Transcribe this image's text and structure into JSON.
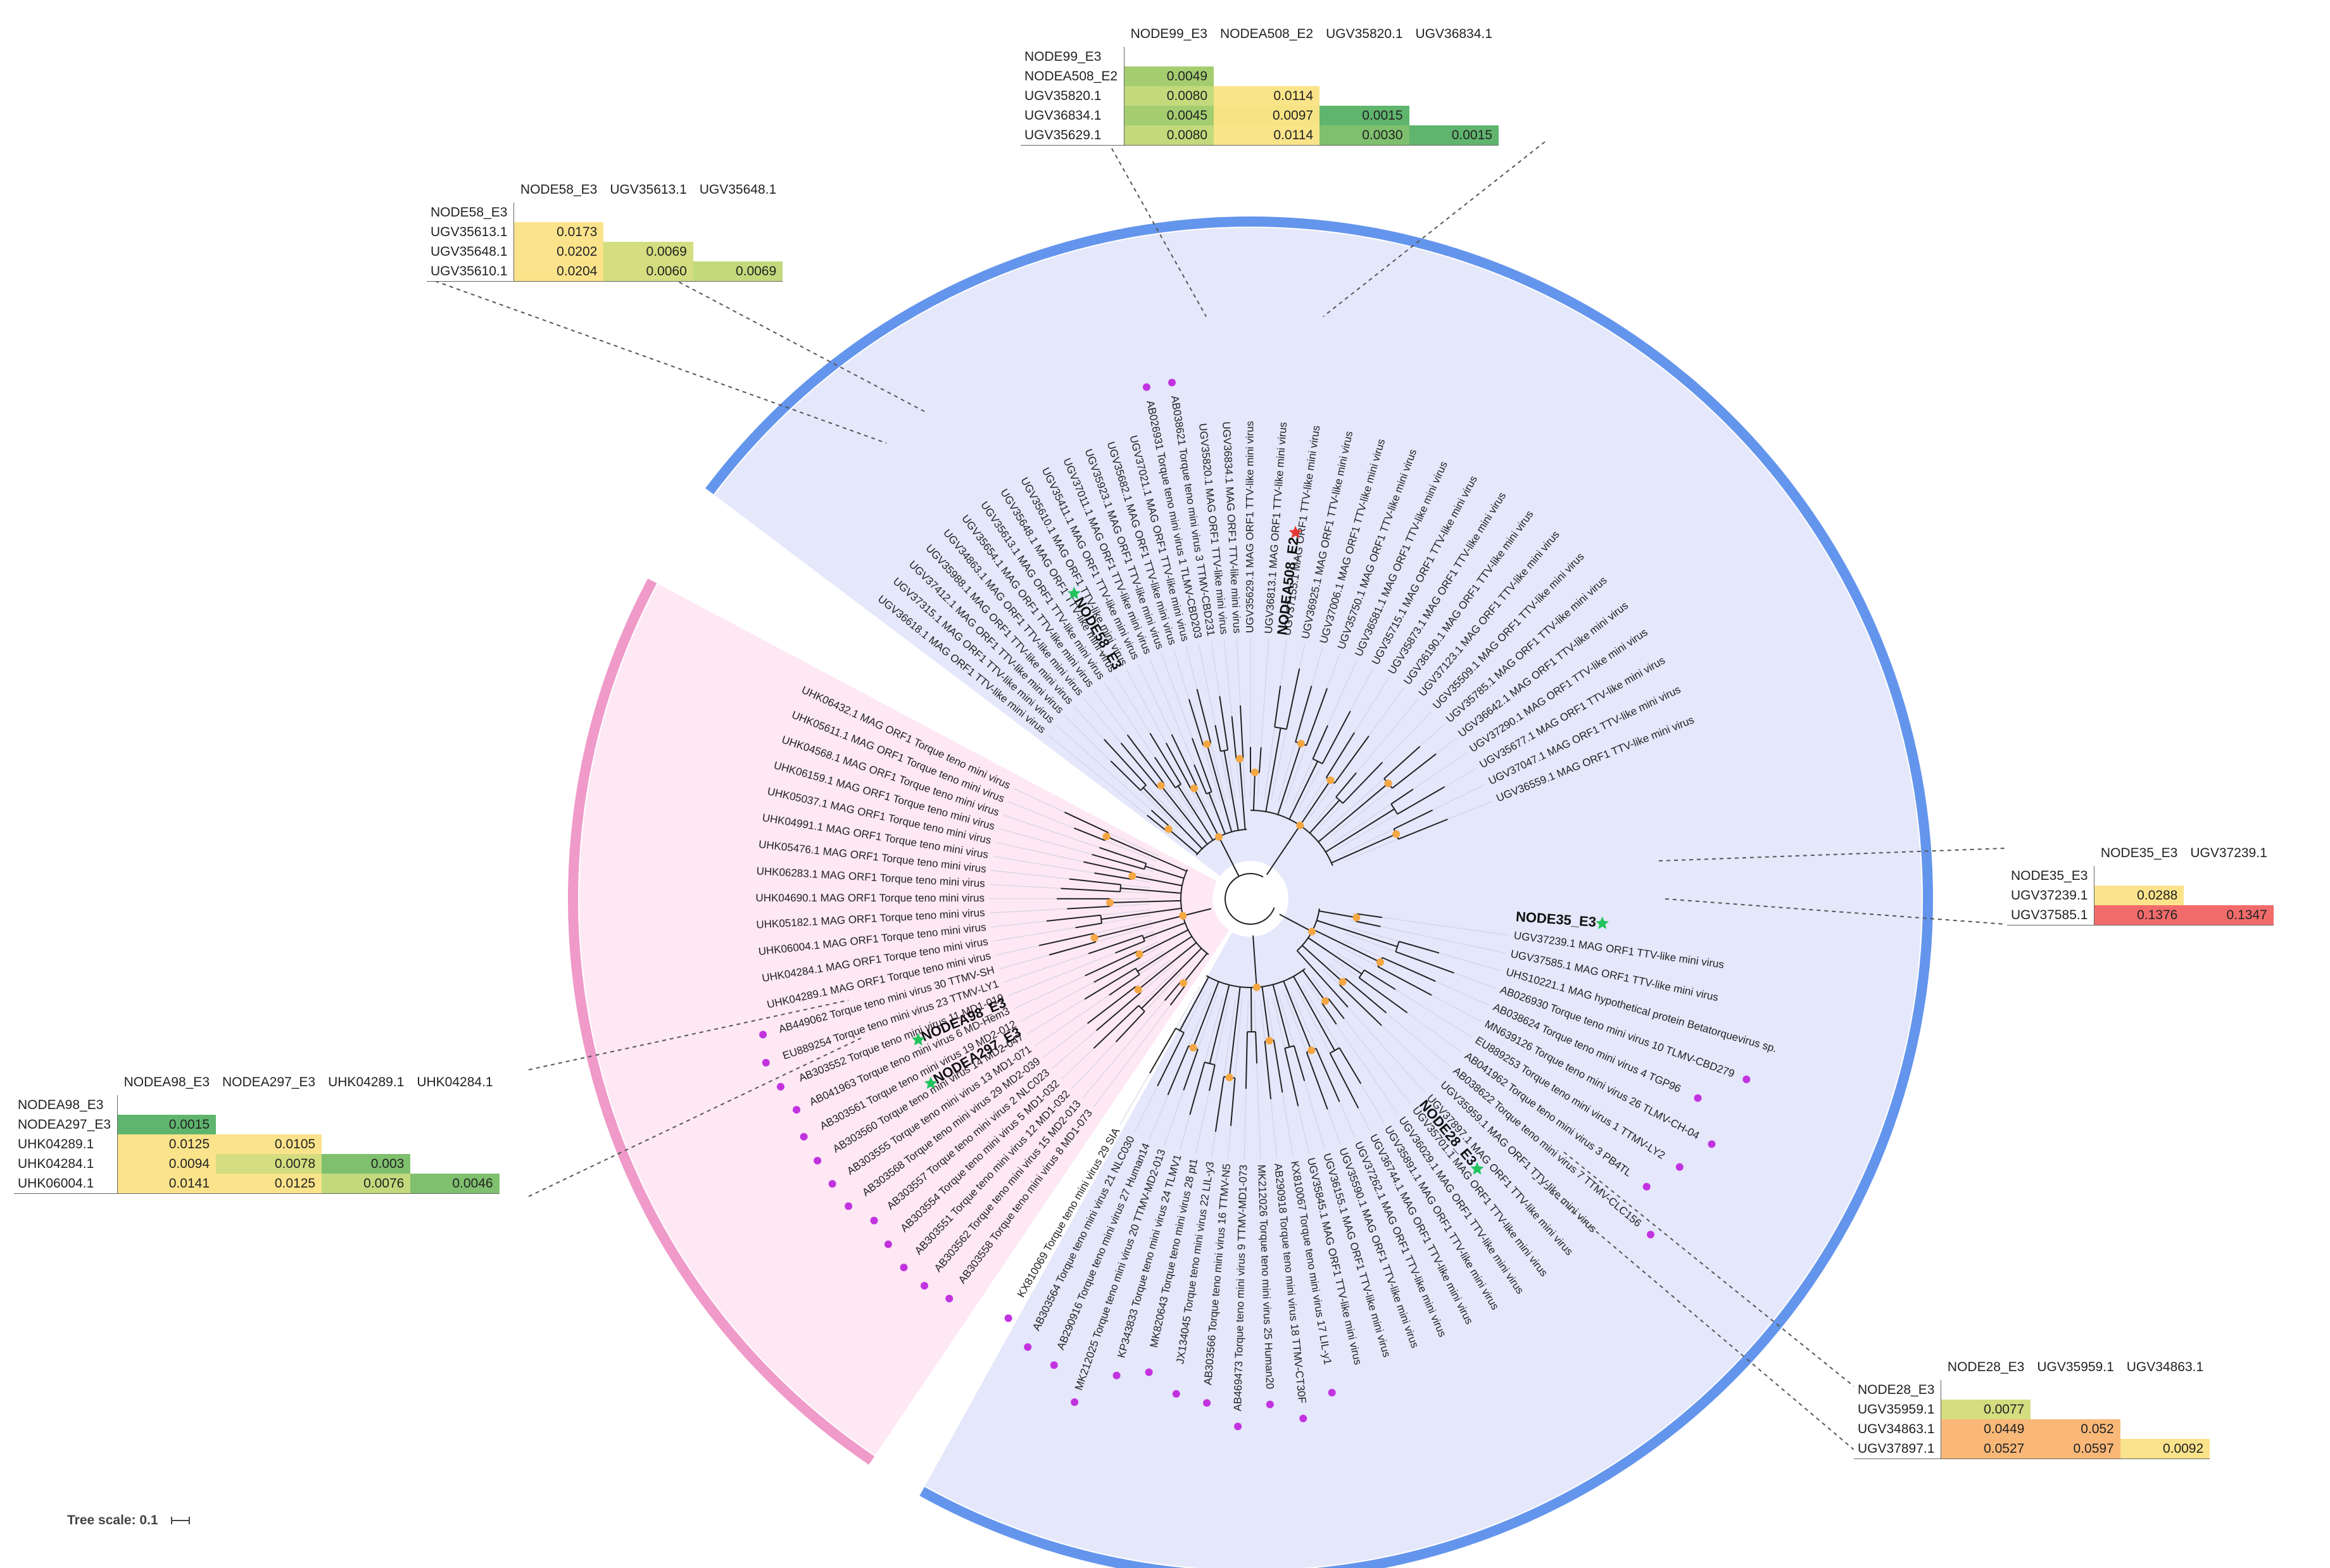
{
  "tree_scale": {
    "label": "Tree scale: 0.1"
  },
  "matrices": [
    {
      "id": "node99",
      "cols": [
        "NODE99_E3",
        "NODEA508_E2",
        "UGV35820.1",
        "UGV36834.1"
      ],
      "rows": [
        {
          "label": "NODE99_E3",
          "values": []
        },
        {
          "label": "NODEA508_E2",
          "values": [
            "0.0049"
          ]
        },
        {
          "label": "UGV35820.1",
          "values": [
            "0.0080",
            "0.0114"
          ]
        },
        {
          "label": "UGV36834.1",
          "values": [
            "0.0045",
            "0.0097",
            "0.0015"
          ]
        },
        {
          "label": "UGV35629.1",
          "values": [
            "0.0080",
            "0.0114",
            "0.0030",
            "0.0015"
          ]
        }
      ],
      "colors": [
        [],
        [
          "#a4cd70"
        ],
        [
          "#c2da7c",
          "#fae489"
        ],
        [
          "#a4cd70",
          "#f6e384",
          "#60b56e"
        ],
        [
          "#c2da7c",
          "#fae489",
          "#7fc06e",
          "#60b56e"
        ]
      ]
    },
    {
      "id": "node58",
      "cols": [
        "NODE58_E3",
        "UGV35613.1",
        "UGV35648.1"
      ],
      "rows": [
        {
          "label": "NODE58_E3",
          "values": []
        },
        {
          "label": "UGV35613.1",
          "values": [
            "0.0173"
          ]
        },
        {
          "label": "UGV35648.1",
          "values": [
            "0.0202",
            "0.0069"
          ]
        },
        {
          "label": "UGV35610.1",
          "values": [
            "0.0204",
            "0.0060",
            "0.0069"
          ]
        }
      ],
      "colors": [
        [],
        [
          "#fbe38b"
        ],
        [
          "#fbe38b",
          "#d4dd7f"
        ],
        [
          "#fbe38b",
          "#d4dd7f",
          "#c2da7c"
        ]
      ]
    },
    {
      "id": "node35",
      "cols": [
        "NODE35_E3",
        "UGV37239.1"
      ],
      "rows": [
        {
          "label": "NODE35_E3",
          "values": []
        },
        {
          "label": "UGV37239.1",
          "values": [
            "0.0288"
          ]
        },
        {
          "label": "UGV37585.1",
          "values": [
            "0.1376",
            "0.1347"
          ]
        }
      ],
      "colors": [
        [],
        [
          "#fbe38b"
        ],
        [
          "#f26b6b",
          "#f26b6b"
        ]
      ]
    },
    {
      "id": "nodea98",
      "cols": [
        "NODEA98_E3",
        "NODEA297_E3",
        "UHK04289.1",
        "UHK04284.1"
      ],
      "rows": [
        {
          "label": "NODEA98_E3",
          "values": []
        },
        {
          "label": "NODEA297_E3",
          "values": [
            "0.0015"
          ]
        },
        {
          "label": "UHK04289.1",
          "values": [
            "0.0125",
            "0.0105"
          ]
        },
        {
          "label": "UHK04284.1",
          "values": [
            "0.0094",
            "0.0078",
            "0.003"
          ]
        },
        {
          "label": "UHK06004.1",
          "values": [
            "0.0141",
            "0.0125",
            "0.0076",
            "0.0046"
          ]
        }
      ],
      "colors": [
        [],
        [
          "#60b56e"
        ],
        [
          "#fbe38b",
          "#fbe38b"
        ],
        [
          "#fbe38b",
          "#d4dd7f",
          "#7fc06e"
        ],
        [
          "#fbe38b",
          "#fbe38b",
          "#c2da7c",
          "#7fc06e"
        ]
      ]
    },
    {
      "id": "node28",
      "cols": [
        "NODE28_E3",
        "UGV35959.1",
        "UGV34863.1"
      ],
      "rows": [
        {
          "label": "NODE28_E3",
          "values": []
        },
        {
          "label": "UGV35959.1",
          "values": [
            "0.0077"
          ]
        },
        {
          "label": "UGV34863.1",
          "values": [
            "0.0449",
            "0.052"
          ]
        },
        {
          "label": "UGV37897.1",
          "values": [
            "0.0527",
            "0.0597",
            "0.0092"
          ]
        }
      ],
      "colors": [
        [],
        [
          "#d4dd7f"
        ],
        [
          "#f9b878",
          "#f9b878"
        ],
        [
          "#f9b878",
          "#f9b878",
          "#fbe38b"
        ]
      ]
    }
  ],
  "node_labels": {
    "node58": "NODE58_E3",
    "nodea508": "NODEA508_E2",
    "node35": "NODE35_E3",
    "nodea98": "NODEA98_E3",
    "nodea297": "NODEA297_E3",
    "node28": "NODE28_E3"
  },
  "leaf_labels": {
    "blue_top_left": [
      "UGV36618.1 MAG ORF1 TTV-like mini virus",
      "UGV37315.1 MAG ORF1 TTV-like mini virus",
      "UGV37412.1 MAG ORF1 TTV-like mini virus",
      "UGV35988.1 MAG ORF1 TTV-like mini virus",
      "UGV34863.1 MAG ORF1 TTV-like mini virus",
      "UGV35654.1 MAG ORF1 TTV-like mini virus",
      "UGV35613.1 MAG ORF1 TTV-like mini virus",
      "UGV35648.1 MAG ORF1 TTV-like mini virus",
      "UGV35610.1 MAG ORF1 TTV-like mini virus",
      "UGV35411.1 MAG ORF1 TTV-like mini virus",
      "UGV37011.1 MAG ORF1 TTV-like mini virus",
      "UGV35923.1 MAG ORF1 TTV-like mini virus",
      "UGV35682.1 MAG ORF1 TTV-like mini virus",
      "UGV37021.1 MAG ORF1 TTV-like mini virus",
      "AB026931 Torque teno mini virus 1 TLMV-CBD203",
      "AB038621 Torque teno mini virus 3 TTMV-CBD231",
      "UGV35820.1 MAG ORF1 TTV-like mini virus",
      "UGV36834.1 MAG ORF1 TTV-like mini virus"
    ],
    "blue_top_right": [
      "UGV35629.1 MAG ORF1 TTV-like mini virus",
      "UGV36813.1 MAG ORF1 TTV-like mini virus",
      "UGV37155.1 MAG ORF1 TTV-like mini virus",
      "UGV36925.1 MAG ORF1 TTV-like mini virus",
      "UGV37006.1 MAG ORF1 TTV-like mini virus",
      "UGV35750.1 MAG ORF1 TTV-like mini virus",
      "UGV36581.1 MAG ORF1 TTV-like mini virus",
      "UGV35715.1 MAG ORF1 TTV-like mini virus",
      "UGV35873.1 MAG ORF1 TTV-like mini virus",
      "UGV36190.1 MAG ORF1 TTV-like mini virus",
      "UGV37123.1 MAG ORF1 TTV-like mini virus",
      "UGV35509.1 MAG ORF1 TTV-like mini virus",
      "UGV35785.1 MAG ORF1 TTV-like mini virus",
      "UGV36642.1 MAG ORF1 TTV-like mini virus",
      "UGV37290.1 MAG ORF1 TTV-like mini virus",
      "UGV35677.1 MAG ORF1 TTV-like mini virus",
      "UGV37047.1 MAG ORF1 TTV-like mini virus",
      "UGV36559.1 MAG ORF1 TTV-like mini virus"
    ],
    "blue_right": [
      "UGV37239.1 MAG ORF1 TTV-like mini virus",
      "UGV37585.1 MAG ORF1 TTV-like mini virus",
      "UHS10221.1 MAG hypothetical protein Betatorquevirus sp.",
      "AB026930 Torque teno mini virus 10 TLMV-CBD279",
      "AB038624 Torque teno mini virus 4 TGP96",
      "MN639126 Torque teno mini virus 26 TLMV-CH-04",
      "EU889253 Torque teno mini virus 1 TTMV-LY2",
      "AB041962 Torque teno mini virus 3 PB4TL",
      "AB038622 Torque teno mini virus 7 TTMV-CLC156",
      "UGV35959.1 MAG ORF1 TTV-like mini virus",
      "UGV37897.1 MAG ORF1 TTV-like mini virus"
    ],
    "blue_bottom": [
      "UGV35701.1 MAG ORF1 TTV-like mini virus",
      "UGV36029.1 MAG ORF1 TTV-like mini virus",
      "UGV35891.1 MAG ORF1 TTV-like mini virus",
      "UGV36744.1 MAG ORF1 TTV-like mini virus",
      "UGV37262.1 MAG ORF1 TTV-like mini virus",
      "UGV35590.1 MAG ORF1 TTV-like mini virus",
      "UGV36155.1 MAG ORF1 TTV-like mini virus",
      "UGV35845.1 MAG ORF1 TTV-like mini virus",
      "KX810067 Torque teno mini virus 17 LIL-y1",
      "AB290918 Torque teno mini virus 18 TTMV-CT30F",
      "MK212026 Torque teno mini virus 25 Human20",
      "AB469473 Torque teno mini virus 9 TTMV-MD1-073",
      "AB303566 Torque teno mini virus 16 TTMV-N5",
      "JX134045 Torque teno mini virus 22 LIL-y3",
      "MK820643 Torque teno mini virus 28 pt1",
      "KP343833 Torque teno mini virus 24 TLMV1",
      "MK212025 Torque teno mini virus 20 TTMV-MD2-013",
      "AB290916 Torque teno mini virus 27 Human14",
      "AB303564 Torque teno mini virus 21 NLC030",
      "KX810069 Torque teno mini virus 29 SIA"
    ],
    "pink": [
      "AB303558 Torque teno mini virus 8 MD1-073",
      "AB303562 Torque teno mini virus 15 MD2-013",
      "AB303551 Torque teno mini virus 12 MD1-032",
      "AB303554 Torque teno mini virus 5 MD1-032",
      "AB303557 Torque teno mini virus 2 NLC023",
      "AB303568 Torque teno mini virus 29 MD2-039",
      "AB303555 Torque teno mini virus 13 MD1-071",
      "AB303560 Torque teno mini virus 14 MD2-047",
      "AB303561 Torque teno mini virus 19 MD2-012",
      "AB041963 Torque teno mini virus 6 MD-Hem3",
      "AB303552 Torque teno mini virus 11 MD1-019",
      "EU889254 Torque teno mini virus 23 TTMV-LY1",
      "AB449062 Torque teno mini virus 30 TTMV-SH",
      "UHK04289.1 MAG ORF1 Torque teno mini virus",
      "UHK04284.1 MAG ORF1 Torque teno mini virus",
      "UHK06004.1 MAG ORF1 Torque teno mini virus",
      "UHK05182.1 MAG ORF1 Torque teno mini virus",
      "UHK04690.1 MAG ORF1 Torque teno mini virus",
      "UHK06283.1 MAG ORF1 Torque teno mini virus",
      "UHK05476.1 MAG ORF1 Torque teno mini virus",
      "UHK04991.1 MAG ORF1 Torque teno mini virus",
      "UHK05037.1 MAG ORF1 Torque teno mini virus",
      "UHK06159.1 MAG ORF1 Torque teno mini virus",
      "UHK04568.1 MAG ORF1 Torque teno mini virus",
      "UHK05611.1 MAG ORF1 Torque teno mini virus",
      "UHK06432.1 MAG ORF1 Torque teno mini virus"
    ]
  },
  "colors": {
    "blue_fill": "#e5e7fb",
    "blue_ring": "#6495ed",
    "pink_fill": "#fde8f4",
    "pink_ring": "#ef9ac9",
    "bootstrap_dot": "#f4a742",
    "reference_dot": "#c233e0",
    "green_star": "#22c35c",
    "red_star": "#e53935"
  }
}
